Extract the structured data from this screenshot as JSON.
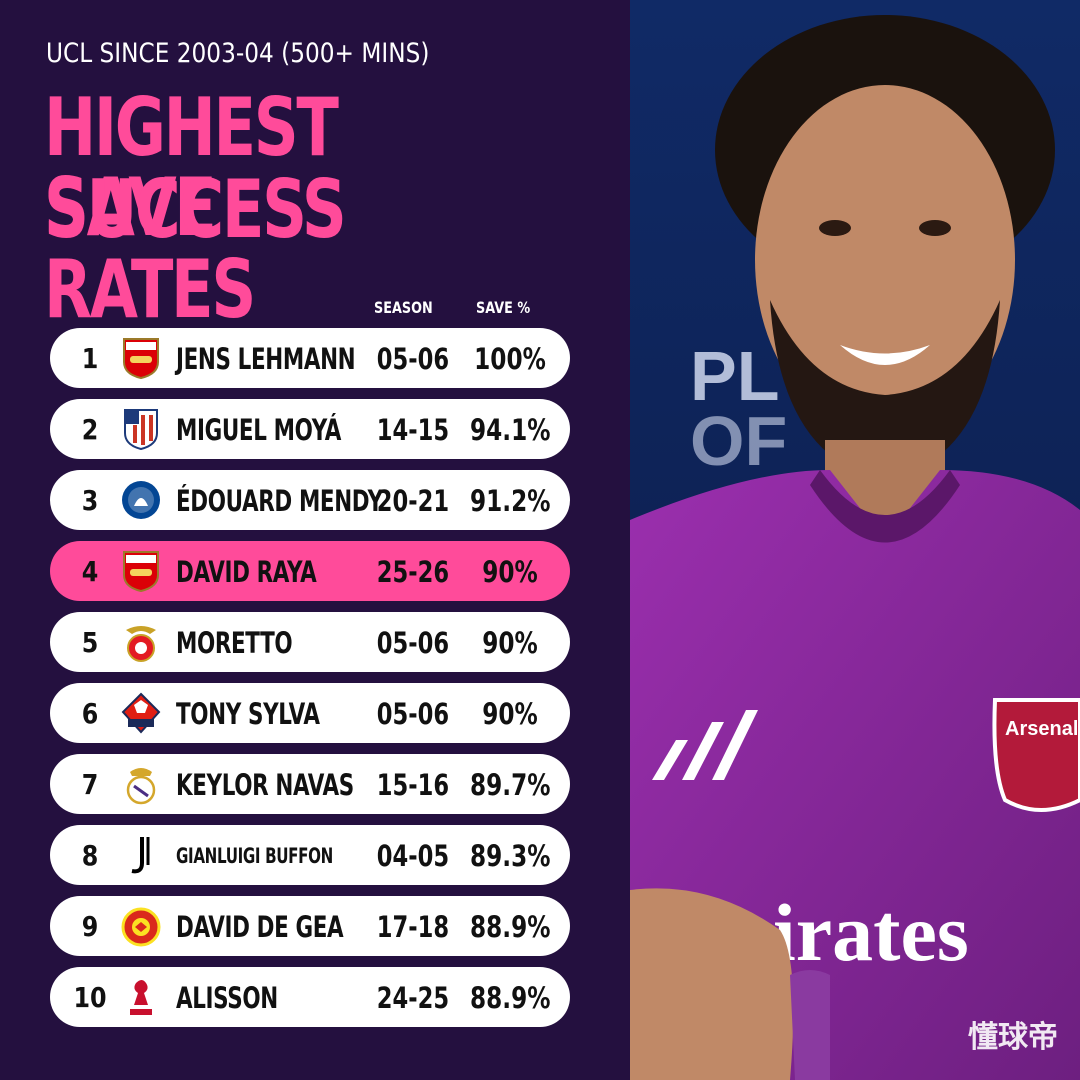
{
  "header": {
    "subtitle": "UCL SINCE 2003-04 (500+ MINS)",
    "title_line1": "HIGHEST SAVE",
    "title_line2": "SUCCESS RATES",
    "col_season": "SEASON",
    "col_save": "SAVE %"
  },
  "rows": [
    {
      "rank": "1",
      "name": "JENS LEHMANN",
      "season": "05-06",
      "save": "100%",
      "club_icon": "arsenal-crest-icon"
    },
    {
      "rank": "2",
      "name": "MIGUEL MOYÁ",
      "season": "14-15",
      "save": "94.1%",
      "club_icon": "atletico-madrid-crest-icon"
    },
    {
      "rank": "3",
      "name": "ÉDOUARD MENDY",
      "season": "20-21",
      "save": "91.2%",
      "club_icon": "chelsea-crest-icon"
    },
    {
      "rank": "4",
      "name": "DAVID RAYA",
      "season": "25-26",
      "save": "90%",
      "club_icon": "arsenal-crest-icon",
      "highlight": true
    },
    {
      "rank": "5",
      "name": "MORETTO",
      "season": "05-06",
      "save": "90%",
      "club_icon": "benfica-crest-icon"
    },
    {
      "rank": "6",
      "name": "TONY SYLVA",
      "season": "05-06",
      "save": "90%",
      "club_icon": "lille-crest-icon"
    },
    {
      "rank": "7",
      "name": "KEYLOR NAVAS",
      "season": "15-16",
      "save": "89.7%",
      "club_icon": "real-madrid-crest-icon"
    },
    {
      "rank": "8",
      "name": "GIANLUIGI BUFFON",
      "season": "04-05",
      "save": "89.3%",
      "club_icon": "juventus-crest-icon"
    },
    {
      "rank": "9",
      "name": "DAVID DE GEA",
      "season": "17-18",
      "save": "88.9%",
      "club_icon": "manchester-united-crest-icon"
    },
    {
      "rank": "10",
      "name": "ALISSON",
      "season": "24-25",
      "save": "88.9%",
      "club_icon": "liverpool-crest-icon"
    }
  ],
  "photo": {
    "shirt_sponsor": "Emirates",
    "shirt_badge": "Arsenal"
  },
  "watermark": "懂球帝",
  "colors": {
    "background": "#24103f",
    "accent": "#ff4b9a",
    "row": "#ffffff"
  }
}
